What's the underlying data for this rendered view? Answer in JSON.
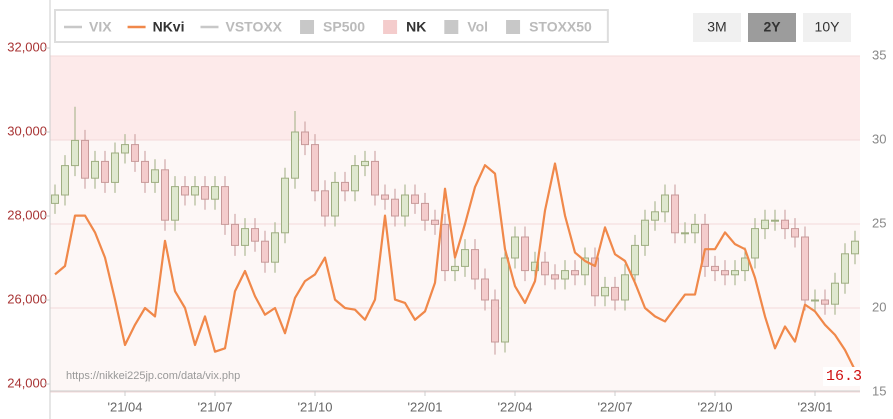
{
  "chart_data": {
    "type": "combo",
    "source": "https://nikkei225jp.com/data/vix.php",
    "range_buttons": {
      "options": [
        "3M",
        "2Y",
        "10Y"
      ],
      "selected_index": 1
    },
    "categories": [
      null,
      null,
      null,
      null,
      null,
      null,
      null,
      "'21/04",
      null,
      null,
      null,
      null,
      null,
      null,
      null,
      null,
      "'21/07",
      null,
      null,
      null,
      null,
      null,
      null,
      null,
      null,
      null,
      "'21/10",
      null,
      null,
      null,
      null,
      null,
      null,
      null,
      null,
      null,
      null,
      "'22/01",
      null,
      null,
      null,
      null,
      null,
      null,
      null,
      null,
      "'22/04",
      null,
      null,
      null,
      null,
      null,
      null,
      null,
      null,
      null,
      "'22/07",
      null,
      null,
      null,
      null,
      null,
      null,
      null,
      null,
      null,
      "'22/10",
      null,
      null,
      null,
      null,
      null,
      null,
      null,
      null,
      null,
      "'23/01",
      null,
      null,
      null,
      null
    ],
    "ylim": [
      24000,
      32000
    ],
    "yticks": [
      {
        "value": 24000,
        "label": "24,000"
      },
      {
        "value": 26000,
        "label": "26,000"
      },
      {
        "value": 28000,
        "label": "28,000"
      },
      {
        "value": 30000,
        "label": "30,000"
      },
      {
        "value": 32000,
        "label": "32,000"
      }
    ],
    "y2lim": [
      15,
      35
    ],
    "y2ticks": [
      15,
      20,
      25,
      30,
      35
    ],
    "series": [
      {
        "name": "VIX",
        "type": "line",
        "color": "#c8c8c8",
        "hidden": true
      },
      {
        "name": "NKvi",
        "type": "line",
        "axis": "y2",
        "color": "#f0884a",
        "values": [
          22,
          22.5,
          25.5,
          25.5,
          24.5,
          23,
          20.5,
          17.8,
          19,
          20,
          19.5,
          24,
          21,
          20,
          17.8,
          19.5,
          17.4,
          17.6,
          21,
          22.2,
          20.7,
          19.6,
          20,
          18.5,
          20.6,
          21.6,
          22,
          23,
          20.5,
          20,
          19.9,
          19.3,
          20.5,
          25.5,
          20.5,
          20.3,
          19.3,
          19.8,
          21.5,
          27.1,
          23,
          25,
          27.2,
          28.5,
          28,
          23.5,
          21.3,
          20.3,
          21.6,
          25.8,
          28.6,
          25.5,
          23.3,
          22.8,
          22.5,
          24.8,
          23.2,
          22.8,
          21.5,
          20,
          19.5,
          19.2,
          20,
          20.8,
          20.8,
          23.5,
          23.5,
          24.5,
          23.8,
          23.5,
          21.8,
          19.5,
          17.6,
          18.9,
          18,
          20.2,
          19.8,
          19,
          18.4,
          17.5,
          16.3
        ]
      },
      {
        "name": "VSTOXX",
        "type": "line",
        "color": "#c8c8c8",
        "hidden": true
      },
      {
        "name": "SP500",
        "type": "box",
        "color": "#c8c8c8",
        "hidden": true
      },
      {
        "name": "NK",
        "type": "candlestick",
        "color": "#f4cccc",
        "up_color": "#dfe8cf",
        "down_stroke": "#c89a9a",
        "up_stroke": "#9fae82",
        "open": [
          28300,
          28500,
          29200,
          29800,
          28900,
          29300,
          28800,
          29500,
          29700,
          29300,
          28800,
          29100,
          27900,
          28700,
          28500,
          28700,
          28400,
          28700,
          27800,
          27300,
          27700,
          27400,
          26900,
          27600,
          28900,
          30000,
          29700,
          28600,
          28000,
          28800,
          28600,
          29200,
          29300,
          28500,
          28400,
          28000,
          28500,
          28300,
          27900,
          27800,
          26700,
          26800,
          27200,
          26500,
          26000,
          25000,
          27000,
          27500,
          26700,
          26900,
          26600,
          26500,
          26700,
          26600,
          27000,
          26100,
          26300,
          26000,
          26600,
          27300,
          27900,
          28100,
          28500,
          27600,
          27600,
          27800,
          26800,
          26700,
          26600,
          26700,
          27000,
          27700,
          27900,
          27900,
          27700,
          27500,
          26000,
          26000,
          25900,
          26400,
          27100
        ],
        "high": [
          28750,
          29450,
          30600,
          30050,
          29550,
          29550,
          29750,
          29950,
          29950,
          29550,
          29350,
          29350,
          28950,
          28950,
          28950,
          28950,
          28950,
          28950,
          28050,
          27950,
          27950,
          27650,
          27850,
          29150,
          30500,
          30250,
          29950,
          28850,
          29050,
          29050,
          29450,
          29550,
          29550,
          28750,
          28650,
          28750,
          28750,
          28550,
          28150,
          28050,
          27050,
          27450,
          27450,
          26750,
          26250,
          27250,
          27750,
          27750,
          27150,
          27150,
          26850,
          26950,
          26950,
          27250,
          27250,
          26550,
          26550,
          26850,
          27550,
          28150,
          28350,
          28750,
          28750,
          27850,
          28050,
          28050,
          27050,
          26950,
          26950,
          27250,
          27950,
          28150,
          28150,
          28150,
          27950,
          27750,
          26250,
          26250,
          26650,
          27350,
          27650
        ],
        "low": [
          28050,
          28250,
          28950,
          28650,
          28650,
          28550,
          28550,
          29250,
          29050,
          28550,
          28550,
          27650,
          27650,
          28250,
          28250,
          28150,
          28150,
          27550,
          27050,
          27050,
          27150,
          26650,
          26650,
          27350,
          28650,
          29450,
          28350,
          27750,
          27750,
          28350,
          28350,
          28950,
          28250,
          28150,
          27750,
          27750,
          28050,
          27650,
          27550,
          26450,
          26450,
          26550,
          26250,
          25750,
          24700,
          24750,
          26750,
          26450,
          26450,
          26350,
          26250,
          26250,
          26350,
          26350,
          25850,
          25850,
          25750,
          25750,
          26350,
          27050,
          27650,
          27850,
          27350,
          27350,
          27350,
          26550,
          26450,
          26350,
          26350,
          26450,
          26750,
          27450,
          27650,
          27450,
          27250,
          25750,
          25750,
          25650,
          25650,
          26150,
          26850
        ],
        "close": [
          28500,
          29200,
          29800,
          28900,
          29300,
          28800,
          29500,
          29700,
          29300,
          28800,
          29100,
          27900,
          28700,
          28500,
          28700,
          28400,
          28700,
          27800,
          27300,
          27700,
          27400,
          26900,
          27600,
          28900,
          30000,
          29700,
          28600,
          28000,
          28800,
          28600,
          29200,
          29300,
          28500,
          28400,
          28000,
          28500,
          28300,
          27900,
          27800,
          26700,
          26800,
          27200,
          26500,
          26000,
          25000,
          27000,
          27500,
          26700,
          26900,
          26600,
          26500,
          26700,
          26600,
          27000,
          26100,
          26300,
          26000,
          26600,
          27300,
          27900,
          28100,
          28500,
          27600,
          27600,
          27800,
          26800,
          26700,
          26600,
          26700,
          27000,
          27700,
          27900,
          27900,
          27700,
          27500,
          26000,
          26000,
          25900,
          26400,
          27100,
          27400
        ]
      },
      {
        "name": "Vol",
        "type": "box",
        "color": "#c8c8c8",
        "hidden": true
      },
      {
        "name": "STOXX50",
        "type": "box",
        "color": "#c8c8c8",
        "hidden": true
      }
    ]
  }
}
